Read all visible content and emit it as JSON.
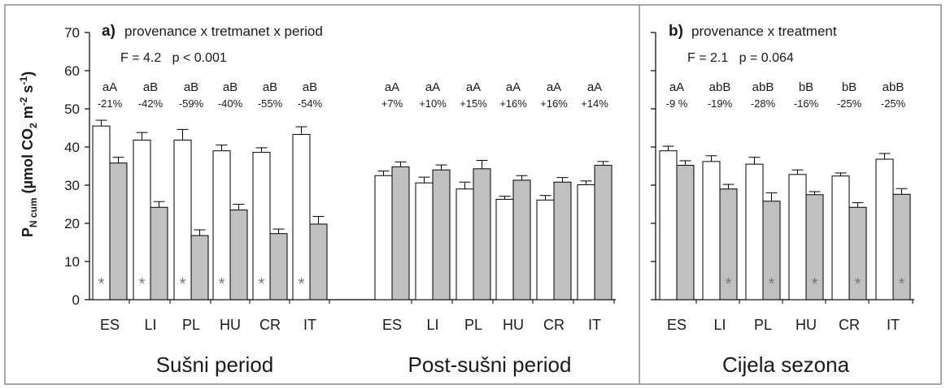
{
  "chart_data": [
    {
      "type": "bar",
      "panel_label": "a)",
      "title": "provenance x tretmanet x period",
      "stat_text": "F = 4.2   p < 0.001",
      "ylabel": "P",
      "ylabel_sub": "N cum",
      "ylabel_unit": "(µmol CO",
      "ylabel_unit_2": "2",
      "ylabel_unit_m": " m",
      "ylabel_unit_m2": "-2",
      "ylabel_unit_s": " s",
      "ylabel_unit_s1": "-1",
      "ylabel_close": ")",
      "ylim": [
        0,
        70
      ],
      "yticks": [
        "0",
        "10",
        "20",
        "30",
        "40",
        "50",
        "60",
        "70"
      ],
      "grid": false,
      "groups": [
        {
          "name": "Sušni period",
          "categories": [
            "ES",
            "LI",
            "PL",
            "HU",
            "CR",
            "IT"
          ],
          "series": [
            {
              "values": [
                45.5,
                41.8,
                41.8,
                39.0,
                38.6,
                43.3
              ],
              "errors": [
                1.5,
                2.0,
                2.8,
                1.5,
                1.2,
                2.0
              ]
            },
            {
              "values": [
                35.8,
                24.2,
                16.8,
                23.5,
                17.3,
                19.8
              ],
              "errors": [
                1.5,
                1.5,
                1.5,
                1.5,
                1.2,
                2.0
              ]
            }
          ],
          "letters": [
            "aA",
            "aB",
            "aB",
            "aB",
            "aB",
            "aB"
          ],
          "percent": [
            "-21%",
            "-42%",
            "-59%",
            "-40%",
            "-55%",
            "-54%"
          ],
          "stars": [
            "*",
            "*",
            "*",
            "*",
            "*",
            "*"
          ],
          "star_on": "first"
        },
        {
          "name": "Post-sušni period",
          "categories": [
            "ES",
            "LI",
            "PL",
            "HU",
            "CR",
            "IT"
          ],
          "series": [
            {
              "values": [
                32.5,
                30.6,
                29.0,
                26.3,
                26.1,
                30.1
              ],
              "errors": [
                1.2,
                1.5,
                1.8,
                0.8,
                1.2,
                1.0
              ]
            },
            {
              "values": [
                34.8,
                34.0,
                34.3,
                31.3,
                30.8,
                35.2
              ],
              "errors": [
                1.3,
                1.3,
                2.2,
                1.2,
                1.2,
                1.0
              ]
            }
          ],
          "letters": [
            "aA",
            "aA",
            "aA",
            "aA",
            "aA",
            "aA"
          ],
          "percent": [
            "+7%",
            "+10%",
            "+15%",
            "+16%",
            "+16%",
            "+14%"
          ],
          "stars": [],
          "star_on": "none"
        }
      ]
    },
    {
      "type": "bar",
      "panel_label": "b)",
      "title": "provenance x treatment",
      "stat_text": "F = 2.1   p = 0.064",
      "ylim": [
        0,
        70
      ],
      "grid": false,
      "groups": [
        {
          "name": "Cijela sezona",
          "categories": [
            "ES",
            "LI",
            "PL",
            "HU",
            "CR",
            "IT"
          ],
          "series": [
            {
              "values": [
                39.0,
                36.2,
                35.5,
                32.8,
                32.4,
                36.8
              ],
              "errors": [
                1.2,
                1.5,
                1.8,
                1.2,
                0.8,
                1.5
              ]
            },
            {
              "values": [
                35.2,
                29.0,
                25.8,
                27.5,
                24.2,
                27.6
              ],
              "errors": [
                1.2,
                1.2,
                2.2,
                0.8,
                1.2,
                1.5
              ]
            }
          ],
          "letters": [
            "aA",
            "abB",
            "abB",
            "bB",
            "bB",
            "abB"
          ],
          "percent": [
            "-9 %",
            "-19%",
            "-28%",
            "-16%",
            "-25%",
            "-25%"
          ],
          "stars": [
            "*",
            "*",
            "*",
            "*",
            "*"
          ],
          "star_on": "second-except-first"
        }
      ]
    }
  ],
  "colors": {
    "control_bar": "#ffffff",
    "treatment_bar": "#c0c0c0",
    "outline": "#000000",
    "frame": "#8c8c8c"
  }
}
